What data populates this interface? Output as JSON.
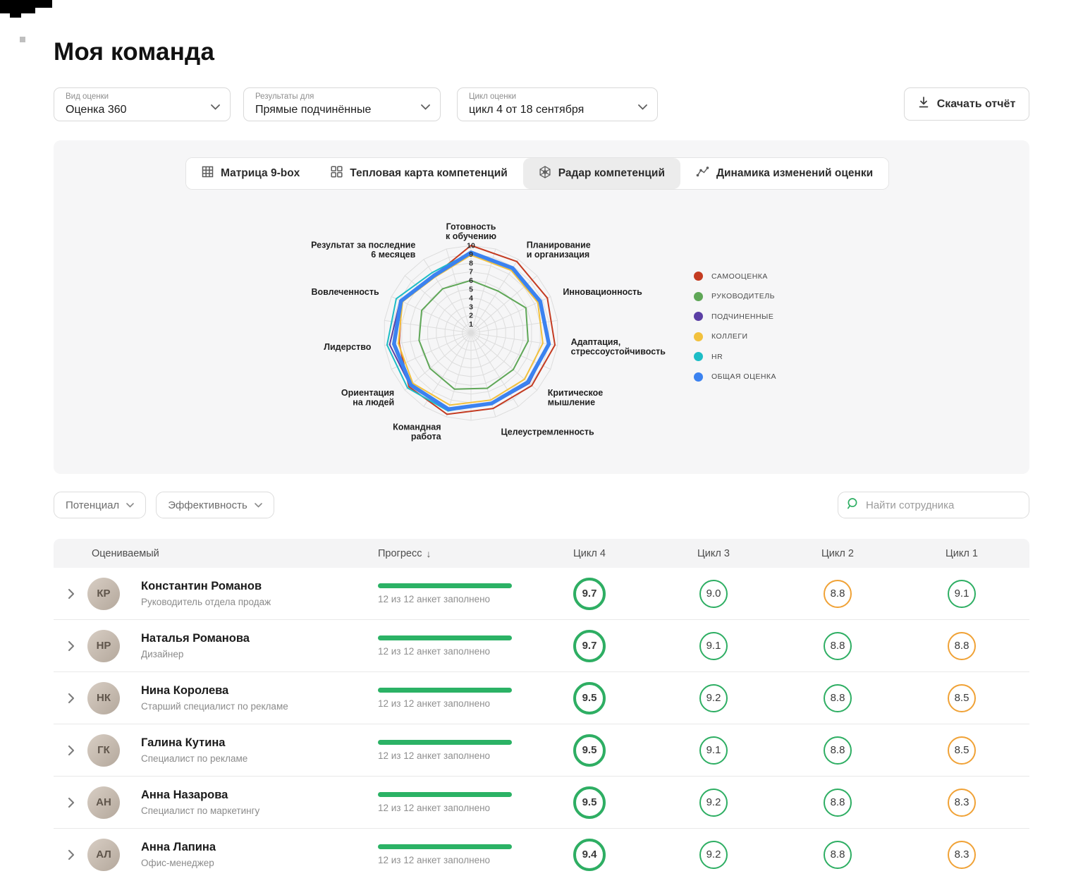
{
  "page": {
    "title": "Моя команда"
  },
  "colors": {
    "score_green": "#2eae63",
    "score_orange": "#f0a236",
    "progress_bar": "#2bb265",
    "search_icon": "#2eae63"
  },
  "icons": {
    "download": "download-icon",
    "chevron_down": "chevron-down-icon",
    "chevron_right": "chevron-right-icon",
    "search": "search-icon",
    "sort_desc": "↓",
    "tab_icons": [
      "grid-icon",
      "heatmap-icon",
      "radar-icon",
      "trend-icon"
    ]
  },
  "filters": {
    "assessment_type": {
      "label": "Вид оценки",
      "value": "Оценка 360"
    },
    "results_for": {
      "label": "Результаты для",
      "value": "Прямые подчинённые"
    },
    "cycle": {
      "label": "Цикл оценки",
      "value": "цикл 4 от 18 сентября"
    },
    "download_button": "Скачать отчёт"
  },
  "tabs": [
    {
      "label": "Матрица 9-box",
      "active": false
    },
    {
      "label": "Тепловая карта компетенций",
      "active": false
    },
    {
      "label": "Радар компетенций",
      "active": true
    },
    {
      "label": "Динамика изменений оценки",
      "active": false
    }
  ],
  "chart_data": {
    "type": "radar",
    "levels": 10,
    "tick_labels": [
      "1",
      "2",
      "3",
      "4",
      "5",
      "6",
      "7",
      "8",
      "9",
      "10"
    ],
    "grid_spokes": 22,
    "axes": [
      {
        "lines": [
          "Готовность",
          "к обучению"
        ]
      },
      {
        "lines": [
          "Планирование",
          "и организация"
        ]
      },
      {
        "lines": [
          "Инновационность"
        ]
      },
      {
        "lines": [
          "Адаптация,",
          "стрессоустойчивость"
        ]
      },
      {
        "lines": [
          "Критическое",
          "мышление"
        ]
      },
      {
        "lines": [
          "Целеустремленность"
        ]
      },
      {
        "lines": [
          "Командная",
          "работа"
        ]
      },
      {
        "lines": [
          "Ориентация",
          "на людей"
        ]
      },
      {
        "lines": [
          "Лидерство"
        ]
      },
      {
        "lines": [
          "Вовлеченность"
        ]
      },
      {
        "lines": [
          "Результат за последние",
          "6 месяцев"
        ]
      }
    ],
    "series": [
      {
        "name": "САМООЦЕНКА",
        "color": "#c43b21",
        "width": 2,
        "values": [
          10,
          9.7,
          9.6,
          9.7,
          9.2,
          9.0,
          9.7,
          9.4,
          8.3,
          8.7,
          7.8
        ]
      },
      {
        "name": "РУКОВОДИТЕЛЬ",
        "color": "#5fa757",
        "width": 2,
        "values": [
          6.0,
          5.7,
          6.9,
          6.6,
          6.4,
          6.6,
          6.7,
          6.2,
          6.0,
          6.2,
          6.0
        ]
      },
      {
        "name": "ПОДЧИНЕННЫЕ",
        "color": "#5b3fa5",
        "width": 2,
        "values": [
          9.1,
          8.7,
          8.7,
          9.0,
          8.8,
          8.5,
          9.2,
          9.2,
          9.4,
          8.9,
          7.8
        ]
      },
      {
        "name": "КОЛЛЕГИ",
        "color": "#f2c13d",
        "width": 2,
        "values": [
          8.9,
          8.5,
          8.4,
          8.3,
          8.1,
          8.0,
          8.6,
          8.8,
          8.4,
          8.6,
          7.6
        ]
      },
      {
        "name": "HR",
        "color": "#1dbdc6",
        "width": 2,
        "values": [
          9.2,
          8.8,
          8.6,
          8.9,
          8.5,
          8.3,
          9.3,
          9.6,
          9.7,
          9.4,
          8.2
        ]
      },
      {
        "name": "ОБЩАЯ ОЦЕНКА",
        "color": "#3b82f0",
        "width": 5.5,
        "values": [
          9.2,
          8.8,
          8.7,
          9.0,
          8.6,
          8.4,
          9.1,
          9.1,
          8.9,
          8.8,
          7.8
        ]
      }
    ],
    "legend_position": "right"
  },
  "toolbar": {
    "potential": "Потенциал",
    "efficiency": "Эффективность",
    "search_placeholder": "Найти сотрудника"
  },
  "table": {
    "columns": {
      "evaluee": "Оцениваемый",
      "progress": "Прогресс",
      "cycle4": "Цикл 4",
      "cycle3": "Цикл 3",
      "cycle2": "Цикл 2",
      "cycle1": "Цикл 1"
    },
    "rows": [
      {
        "name": "Константин Романов",
        "role": "Руководитель отдела продаж",
        "progress_label": "12 из 12 анкет заполнено",
        "progress_pct": 100,
        "scores": [
          {
            "value": "9.7",
            "color": "green"
          },
          {
            "value": "9.0",
            "color": "green"
          },
          {
            "value": "8.8",
            "color": "orange"
          },
          {
            "value": "9.1",
            "color": "green"
          }
        ]
      },
      {
        "name": "Наталья  Романова",
        "role": "Дизайнер",
        "progress_label": "12 из 12 анкет заполнено",
        "progress_pct": 100,
        "scores": [
          {
            "value": "9.7",
            "color": "green"
          },
          {
            "value": "9.1",
            "color": "green"
          },
          {
            "value": "8.8",
            "color": "green"
          },
          {
            "value": "8.8",
            "color": "orange"
          }
        ]
      },
      {
        "name": "Нина  Королева",
        "role": "Старший специалист по рекламе",
        "progress_label": "12 из 12 анкет заполнено",
        "progress_pct": 100,
        "scores": [
          {
            "value": "9.5",
            "color": "green"
          },
          {
            "value": "9.2",
            "color": "green"
          },
          {
            "value": "8.8",
            "color": "green"
          },
          {
            "value": "8.5",
            "color": "orange"
          }
        ]
      },
      {
        "name": "Галина  Кутина",
        "role": "Специалист по рекламе",
        "progress_label": "12 из 12 анкет заполнено",
        "progress_pct": 100,
        "scores": [
          {
            "value": "9.5",
            "color": "green"
          },
          {
            "value": "9.1",
            "color": "green"
          },
          {
            "value": "8.8",
            "color": "green"
          },
          {
            "value": "8.5",
            "color": "orange"
          }
        ]
      },
      {
        "name": "Анна  Назарова",
        "role": "Специалист по маркетингу",
        "progress_label": "12 из 12 анкет заполнено",
        "progress_pct": 100,
        "scores": [
          {
            "value": "9.5",
            "color": "green"
          },
          {
            "value": "9.2",
            "color": "green"
          },
          {
            "value": "8.8",
            "color": "green"
          },
          {
            "value": "8.3",
            "color": "orange"
          }
        ]
      },
      {
        "name": "Анна  Лапина",
        "role": "Офис-менеджер",
        "progress_label": "12 из 12 анкет заполнено",
        "progress_pct": 100,
        "scores": [
          {
            "value": "9.4",
            "color": "green"
          },
          {
            "value": "9.2",
            "color": "green"
          },
          {
            "value": "8.8",
            "color": "green"
          },
          {
            "value": "8.3",
            "color": "orange"
          }
        ]
      }
    ]
  }
}
